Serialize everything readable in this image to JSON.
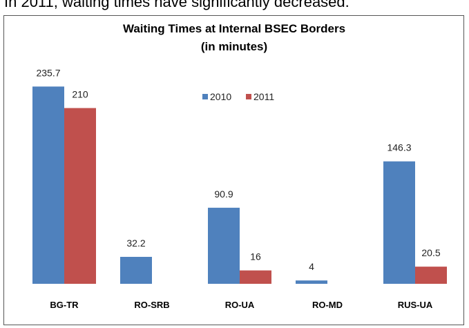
{
  "caption": "In 2011, waiting times have significantly decreased.",
  "chart_data": {
    "type": "bar",
    "title": "Waiting Times at Internal BSEC Borders",
    "subtitle": "(in minutes)",
    "categories": [
      "BG-TR",
      "RO-SRB",
      "RO-UA",
      "RO-MD",
      "RUS-UA"
    ],
    "series": [
      {
        "name": "2010",
        "color": "#4f81bd",
        "values": [
          235.7,
          32.2,
          90.9,
          4,
          146.3
        ]
      },
      {
        "name": "2011",
        "color": "#c0504d",
        "values": [
          210,
          null,
          16,
          null,
          20.5
        ]
      }
    ],
    "ylim": [
      0,
      250
    ],
    "grid": false
  }
}
